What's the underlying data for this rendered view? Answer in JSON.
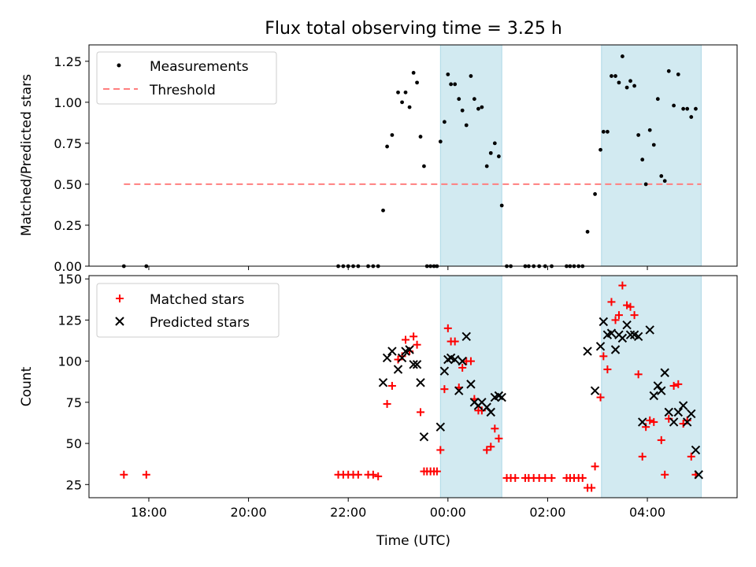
{
  "chart_data": [
    {
      "type": "scatter",
      "title": "Flux total observing time = 3.25 h",
      "ylabel": "Matched/Predicted stars",
      "xlabel": "",
      "xlim_hours": [
        -7.2,
        5.8
      ],
      "ylim": [
        0,
        1.35
      ],
      "yticks": [
        0,
        0.25,
        0.5,
        0.75,
        1.0,
        1.25
      ],
      "ytick_labels": [
        "0.00",
        "0.25",
        "0.50",
        "0.75",
        "1.00",
        "1.25"
      ],
      "shaded_ranges_hours": [
        [
          -0.15,
          1.08
        ],
        [
          3.08,
          5.08
        ]
      ],
      "legend": {
        "location": "top-left",
        "entries": [
          "Measurements",
          "Threshold"
        ]
      },
      "threshold": {
        "name": "Threshold",
        "value": 0.5,
        "x_range_hours": [
          -6.5,
          5.08
        ],
        "color": "#ff7f7f"
      },
      "series": [
        {
          "name": "Measurements",
          "marker": "dot",
          "color": "#000000",
          "points": [
            [
              -6.5,
              0
            ],
            [
              -6.05,
              0
            ],
            [
              -2.2,
              0
            ],
            [
              -2.1,
              0
            ],
            [
              -2.0,
              0
            ],
            [
              -1.9,
              0
            ],
            [
              -1.8,
              0
            ],
            [
              -1.6,
              0
            ],
            [
              -1.5,
              0
            ],
            [
              -1.4,
              0
            ],
            [
              -1.3,
              0.34
            ],
            [
              -1.22,
              0.73
            ],
            [
              -1.12,
              0.8
            ],
            [
              -1.0,
              1.06
            ],
            [
              -0.92,
              1.0
            ],
            [
              -0.85,
              1.06
            ],
            [
              -0.77,
              0.97
            ],
            [
              -0.69,
              1.18
            ],
            [
              -0.62,
              1.12
            ],
            [
              -0.55,
              0.79
            ],
            [
              -0.48,
              0.61
            ],
            [
              -0.42,
              0
            ],
            [
              -0.35,
              0
            ],
            [
              -0.28,
              0
            ],
            [
              -0.22,
              0
            ],
            [
              -0.15,
              0.76
            ],
            [
              -0.07,
              0.88
            ],
            [
              0.0,
              1.17
            ],
            [
              0.06,
              1.11
            ],
            [
              0.14,
              1.11
            ],
            [
              0.22,
              1.02
            ],
            [
              0.29,
              0.95
            ],
            [
              0.37,
              0.86
            ],
            [
              0.46,
              1.16
            ],
            [
              0.53,
              1.02
            ],
            [
              0.61,
              0.96
            ],
            [
              0.68,
              0.97
            ],
            [
              0.78,
              0.61
            ],
            [
              0.86,
              0.69
            ],
            [
              0.94,
              0.75
            ],
            [
              1.02,
              0.67
            ],
            [
              1.08,
              0.37
            ],
            [
              1.18,
              0
            ],
            [
              1.26,
              0
            ],
            [
              1.55,
              0
            ],
            [
              1.62,
              0
            ],
            [
              1.72,
              0
            ],
            [
              1.83,
              0
            ],
            [
              1.95,
              0
            ],
            [
              2.08,
              0
            ],
            [
              2.38,
              0
            ],
            [
              2.45,
              0
            ],
            [
              2.53,
              0
            ],
            [
              2.62,
              0
            ],
            [
              2.7,
              0
            ],
            [
              2.8,
              0.21
            ],
            [
              2.95,
              0.44
            ],
            [
              3.06,
              0.71
            ],
            [
              3.12,
              0.82
            ],
            [
              3.2,
              0.82
            ],
            [
              3.28,
              1.16
            ],
            [
              3.36,
              1.16
            ],
            [
              3.43,
              1.12
            ],
            [
              3.5,
              1.28
            ],
            [
              3.59,
              1.09
            ],
            [
              3.66,
              1.13
            ],
            [
              3.74,
              1.1
            ],
            [
              3.82,
              0.8
            ],
            [
              3.9,
              0.65
            ],
            [
              3.97,
              0.5
            ],
            [
              4.05,
              0.83
            ],
            [
              4.13,
              0.74
            ],
            [
              4.21,
              1.02
            ],
            [
              4.28,
              0.55
            ],
            [
              4.35,
              0.52
            ],
            [
              4.43,
              1.19
            ],
            [
              4.53,
              0.98
            ],
            [
              4.62,
              1.17
            ],
            [
              4.72,
              0.96
            ],
            [
              4.8,
              0.96
            ],
            [
              4.88,
              0.91
            ],
            [
              4.97,
              0.96
            ]
          ]
        }
      ]
    },
    {
      "type": "scatter",
      "title": "",
      "ylabel": "Count",
      "xlabel": "Time (UTC)",
      "xlim_hours": [
        -7.2,
        5.8
      ],
      "xticks_hours": [
        -6,
        -4,
        -2,
        0,
        2,
        4
      ],
      "xtick_labels": [
        "18:00",
        "20:00",
        "22:00",
        "00:00",
        "02:00",
        "04:00"
      ],
      "ylim": [
        17,
        152
      ],
      "yticks": [
        25,
        50,
        75,
        100,
        125,
        150
      ],
      "ytick_labels": [
        "25",
        "50",
        "75",
        "100",
        "125",
        "150"
      ],
      "shaded_ranges_hours": [
        [
          -0.15,
          1.08
        ],
        [
          3.08,
          5.08
        ]
      ],
      "legend": {
        "location": "top-left",
        "entries": [
          "Matched stars",
          "Predicted stars"
        ]
      },
      "series": [
        {
          "name": "Matched stars",
          "marker": "plus",
          "color": "#ff0000",
          "points": [
            [
              -6.5,
              31
            ],
            [
              -6.05,
              31
            ],
            [
              -2.2,
              31
            ],
            [
              -2.1,
              31
            ],
            [
              -2.0,
              31
            ],
            [
              -1.9,
              31
            ],
            [
              -1.8,
              31
            ],
            [
              -1.6,
              31
            ],
            [
              -1.5,
              31
            ],
            [
              -1.4,
              30
            ],
            [
              -1.22,
              74
            ],
            [
              -1.12,
              85
            ],
            [
              -1.0,
              101
            ],
            [
              -0.92,
              103
            ],
            [
              -0.85,
              113
            ],
            [
              -0.77,
              106
            ],
            [
              -0.69,
              115
            ],
            [
              -0.62,
              110
            ],
            [
              -0.55,
              69
            ],
            [
              -0.48,
              33
            ],
            [
              -0.42,
              33
            ],
            [
              -0.35,
              33
            ],
            [
              -0.28,
              33
            ],
            [
              -0.22,
              33
            ],
            [
              -0.15,
              46
            ],
            [
              -0.07,
              83
            ],
            [
              0.0,
              120
            ],
            [
              0.06,
              112
            ],
            [
              0.14,
              112
            ],
            [
              0.22,
              84
            ],
            [
              0.29,
              96
            ],
            [
              0.37,
              100
            ],
            [
              0.46,
              100
            ],
            [
              0.53,
              77
            ],
            [
              0.61,
              70
            ],
            [
              0.68,
              70
            ],
            [
              0.78,
              46
            ],
            [
              0.86,
              48
            ],
            [
              0.94,
              59
            ],
            [
              1.02,
              53
            ],
            [
              1.18,
              29
            ],
            [
              1.26,
              29
            ],
            [
              1.35,
              29
            ],
            [
              1.55,
              29
            ],
            [
              1.62,
              29
            ],
            [
              1.72,
              29
            ],
            [
              1.83,
              29
            ],
            [
              1.95,
              29
            ],
            [
              2.08,
              29
            ],
            [
              2.38,
              29
            ],
            [
              2.45,
              29
            ],
            [
              2.53,
              29
            ],
            [
              2.62,
              29
            ],
            [
              2.7,
              29
            ],
            [
              2.8,
              23
            ],
            [
              2.88,
              23
            ],
            [
              2.95,
              36
            ],
            [
              3.06,
              78
            ],
            [
              3.12,
              103
            ],
            [
              3.2,
              95
            ],
            [
              3.28,
              136
            ],
            [
              3.36,
              125
            ],
            [
              3.43,
              128
            ],
            [
              3.5,
              146
            ],
            [
              3.59,
              134
            ],
            [
              3.66,
              133
            ],
            [
              3.74,
              128
            ],
            [
              3.82,
              92
            ],
            [
              3.9,
              42
            ],
            [
              3.97,
              60
            ],
            [
              4.05,
              64
            ],
            [
              4.13,
              63
            ],
            [
              4.28,
              52
            ],
            [
              4.35,
              31
            ],
            [
              4.43,
              65
            ],
            [
              4.53,
              85
            ],
            [
              4.62,
              86
            ],
            [
              4.72,
              62
            ],
            [
              4.8,
              64
            ],
            [
              4.88,
              42
            ],
            [
              4.97,
              31
            ]
          ]
        },
        {
          "name": "Predicted stars",
          "marker": "x",
          "color": "#000000",
          "points": [
            [
              -1.3,
              87
            ],
            [
              -1.22,
              102
            ],
            [
              -1.12,
              106
            ],
            [
              -1.0,
              95
            ],
            [
              -0.92,
              102
            ],
            [
              -0.85,
              106
            ],
            [
              -0.77,
              107
            ],
            [
              -0.69,
              98
            ],
            [
              -0.62,
              98
            ],
            [
              -0.55,
              87
            ],
            [
              -0.48,
              54
            ],
            [
              -0.15,
              60
            ],
            [
              -0.07,
              94
            ],
            [
              0.0,
              101
            ],
            [
              0.06,
              102
            ],
            [
              0.14,
              101
            ],
            [
              0.22,
              82
            ],
            [
              0.29,
              100
            ],
            [
              0.37,
              115
            ],
            [
              0.46,
              86
            ],
            [
              0.53,
              75
            ],
            [
              0.61,
              73
            ],
            [
              0.68,
              75
            ],
            [
              0.78,
              72
            ],
            [
              0.86,
              69
            ],
            [
              0.94,
              78
            ],
            [
              1.02,
              79
            ],
            [
              1.08,
              78
            ],
            [
              2.8,
              106
            ],
            [
              2.95,
              82
            ],
            [
              3.06,
              109
            ],
            [
              3.12,
              124
            ],
            [
              3.2,
              116
            ],
            [
              3.28,
              117
            ],
            [
              3.36,
              107
            ],
            [
              3.43,
              116
            ],
            [
              3.5,
              114
            ],
            [
              3.59,
              122
            ],
            [
              3.66,
              116
            ],
            [
              3.74,
              116
            ],
            [
              3.82,
              115
            ],
            [
              3.9,
              63
            ],
            [
              4.05,
              119
            ],
            [
              4.13,
              79
            ],
            [
              4.21,
              85
            ],
            [
              4.28,
              82
            ],
            [
              4.35,
              93
            ],
            [
              4.43,
              69
            ],
            [
              4.53,
              63
            ],
            [
              4.62,
              69
            ],
            [
              4.72,
              73
            ],
            [
              4.8,
              63
            ],
            [
              4.88,
              68
            ],
            [
              4.97,
              46
            ],
            [
              5.03,
              31
            ]
          ]
        }
      ]
    }
  ]
}
